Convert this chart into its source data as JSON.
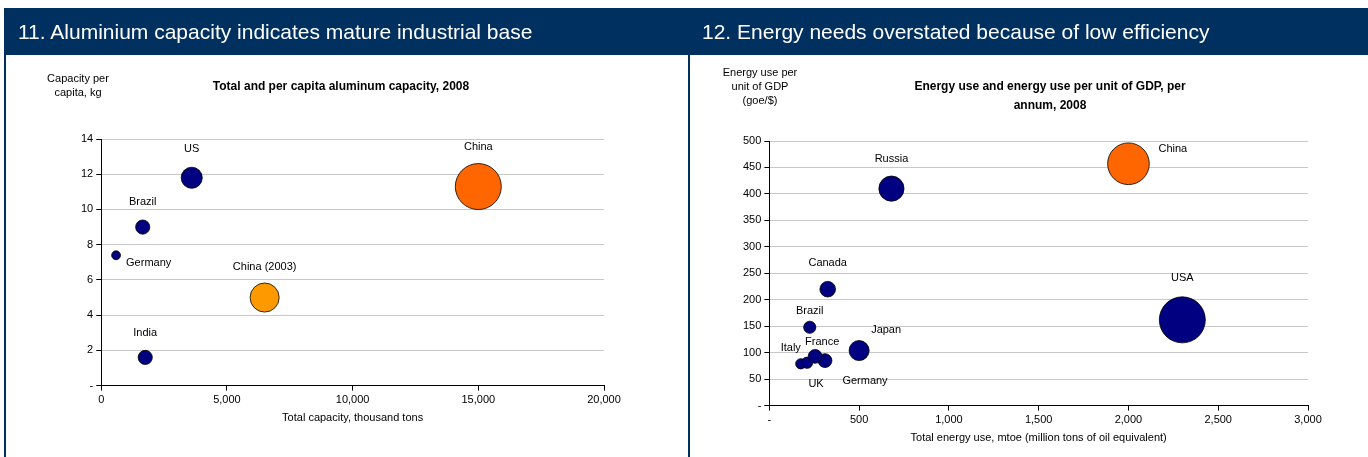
{
  "chart_data": [
    {
      "type": "bubble",
      "title": "11. Aluminium capacity indicates mature industrial base",
      "subtitle": "Total and per capita aluminum capacity, 2008",
      "xlabel": "Total capacity, thousand tons",
      "ylabel": "Capacity per capita, kg",
      "xlim": [
        0,
        20000
      ],
      "xticks": [
        0,
        {
          "value": 5000,
          "label": "5,000"
        },
        {
          "value": 10000,
          "label": "10,000"
        },
        {
          "value": 15000,
          "label": "15,000"
        },
        {
          "value": 20000,
          "label": "20,000"
        }
      ],
      "ylim": [
        0,
        14
      ],
      "yticks": [
        {
          "value": 0,
          "label": "-"
        },
        2,
        4,
        6,
        8,
        10,
        12,
        14
      ],
      "grid": "y",
      "legend": false,
      "series": [
        {
          "name": "US",
          "color": "#000080",
          "x": [
            3600
          ],
          "values": [
            11.8
          ],
          "sizes": [
            0.21
          ]
        },
        {
          "name": "Brazil",
          "color": "#000080",
          "x": [
            1650
          ],
          "values": [
            9.0
          ],
          "sizes": [
            0.095
          ]
        },
        {
          "name": "Germany",
          "color": "#000080",
          "x": [
            590
          ],
          "values": [
            7.4
          ],
          "sizes": [
            0.037
          ]
        },
        {
          "name": "China (2003)",
          "color": "#ff9900",
          "x": [
            6500
          ],
          "values": [
            5.0
          ],
          "sizes": [
            0.4
          ]
        },
        {
          "name": "India",
          "color": "#000080",
          "x": [
            1750
          ],
          "values": [
            1.6
          ],
          "sizes": [
            0.095
          ]
        },
        {
          "name": "China",
          "color": "#ff6600",
          "x": [
            15000
          ],
          "values": [
            11.3
          ],
          "sizes": [
            1
          ]
        }
      ]
    },
    {
      "type": "bubble",
      "title": "12. Energy needs overstated because of low efficiency",
      "subtitle": "Energy use and energy use per unit of GDP, per annum, 2008",
      "xlabel": "Total energy use, mtoe (million tons of oil equivalent)",
      "ylabel": "Energy use per unit of GDP (goe/$)",
      "xlim": [
        0,
        3000
      ],
      "xticks": [
        {
          "value": 0,
          "label": "-"
        },
        500,
        {
          "value": 1000,
          "label": "1,000"
        },
        {
          "value": 1500,
          "label": "1,500"
        },
        {
          "value": 2000,
          "label": "2,000"
        },
        {
          "value": 2500,
          "label": "2,500"
        },
        {
          "value": 3000,
          "label": "3,000"
        }
      ],
      "ylim": [
        0,
        500
      ],
      "yticks": [
        {
          "value": 0,
          "label": "-"
        },
        50,
        100,
        150,
        200,
        250,
        300,
        350,
        400,
        450,
        500
      ],
      "grid": "y",
      "legend": false,
      "series": [
        {
          "name": "Russia",
          "color": "#000080",
          "x": [
            680
          ],
          "values": [
            410
          ],
          "sizes": [
            0.3
          ]
        },
        {
          "name": "China",
          "color": "#ff6600",
          "x": [
            2000
          ],
          "values": [
            457
          ],
          "sizes": [
            0.82
          ]
        },
        {
          "name": "USA",
          "color": "#000080",
          "x": [
            2300
          ],
          "values": [
            162
          ],
          "sizes": [
            1
          ]
        },
        {
          "name": "Canada",
          "color": "#000080",
          "x": [
            325
          ],
          "values": [
            220
          ],
          "sizes": [
            0.115
          ]
        },
        {
          "name": "Brazil",
          "color": "#000080",
          "x": [
            225
          ],
          "values": [
            148
          ],
          "sizes": [
            0.07
          ]
        },
        {
          "name": "Japan",
          "color": "#000080",
          "x": [
            500
          ],
          "values": [
            104
          ],
          "sizes": [
            0.19
          ]
        },
        {
          "name": "France",
          "color": "#000080",
          "x": [
            255
          ],
          "values": [
            93
          ],
          "sizes": [
            0.09
          ]
        },
        {
          "name": "Germany",
          "color": "#000080",
          "x": [
            310
          ],
          "values": [
            85
          ],
          "sizes": [
            0.09
          ]
        },
        {
          "name": "UK",
          "color": "#000080",
          "x": [
            210
          ],
          "values": [
            81
          ],
          "sizes": [
            0.06
          ]
        },
        {
          "name": "Italy",
          "color": "#000080",
          "x": [
            175
          ],
          "values": [
            79
          ],
          "sizes": [
            0.05
          ]
        }
      ]
    }
  ]
}
